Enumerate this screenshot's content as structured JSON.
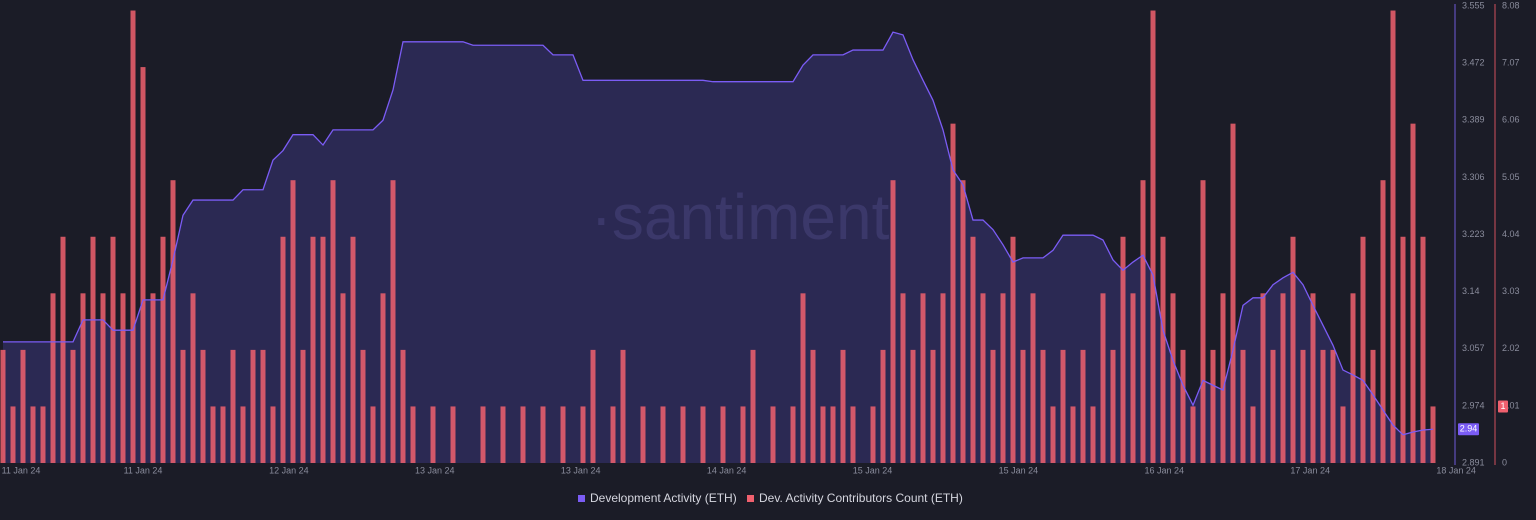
{
  "chart_data": {
    "type": "bar-line",
    "watermark": "·santiment",
    "xtick_labels": [
      "11 Jan 24",
      "11 Jan 24",
      "12 Jan 24",
      "13 Jan 24",
      "13 Jan 24",
      "14 Jan 24",
      "15 Jan 24",
      "15 Jan 24",
      "16 Jan 24",
      "17 Jan 24",
      "18 Jan 24"
    ],
    "ylim": [
      2.891,
      3.555
    ],
    "yticks": [
      2.891,
      2.974,
      3.057,
      3.14,
      3.223,
      3.306,
      3.389,
      3.472,
      3.555
    ],
    "y2lim": [
      0,
      8.08
    ],
    "y2ticks": [
      0,
      1.01,
      2.02,
      3.03,
      4.04,
      5.05,
      6.06,
      7.07,
      8.08
    ],
    "series": [
      {
        "name": "Development Activity (ETH)",
        "color": "#7b5cf5",
        "type": "area",
        "values": [
          3.067,
          3.067,
          3.067,
          3.067,
          3.067,
          3.067,
          3.067,
          3.067,
          3.099,
          3.099,
          3.099,
          3.084,
          3.084,
          3.084,
          3.128,
          3.128,
          3.128,
          3.186,
          3.251,
          3.273,
          3.273,
          3.273,
          3.273,
          3.273,
          3.288,
          3.288,
          3.288,
          3.331,
          3.345,
          3.368,
          3.368,
          3.368,
          3.353,
          3.375,
          3.375,
          3.375,
          3.375,
          3.375,
          3.389,
          3.433,
          3.503,
          3.503,
          3.503,
          3.503,
          3.503,
          3.503,
          3.503,
          3.498,
          3.498,
          3.498,
          3.498,
          3.498,
          3.498,
          3.498,
          3.498,
          3.484,
          3.484,
          3.484,
          3.447,
          3.447,
          3.447,
          3.447,
          3.447,
          3.447,
          3.447,
          3.447,
          3.447,
          3.447,
          3.447,
          3.447,
          3.447,
          3.445,
          3.445,
          3.445,
          3.445,
          3.445,
          3.445,
          3.445,
          3.445,
          3.445,
          3.469,
          3.484,
          3.484,
          3.484,
          3.484,
          3.491,
          3.491,
          3.491,
          3.491,
          3.517,
          3.513,
          3.477,
          3.447,
          3.418,
          3.375,
          3.317,
          3.295,
          3.244,
          3.244,
          3.23,
          3.208,
          3.183,
          3.189,
          3.189,
          3.189,
          3.2,
          3.222,
          3.222,
          3.222,
          3.222,
          3.215,
          3.186,
          3.171,
          3.183,
          3.193,
          3.164,
          3.084,
          3.04,
          3.004,
          2.975,
          3.011,
          3.004,
          2.997,
          3.055,
          3.12,
          3.131,
          3.131,
          3.15,
          3.16,
          3.168,
          3.15,
          3.12,
          3.091,
          3.062,
          3.026,
          3.019,
          3.011,
          2.99,
          2.968,
          2.946,
          2.932,
          2.936,
          2.939,
          2.94
        ]
      },
      {
        "name": "Dev. Activity Contributors Count (ETH)",
        "color": "#f0606e",
        "type": "bar",
        "axis": "y2",
        "values": [
          2,
          1,
          2,
          1,
          1,
          3,
          4,
          2,
          3,
          4,
          3,
          4,
          3,
          8,
          7,
          3,
          4,
          5,
          2,
          3,
          2,
          1,
          1,
          2,
          1,
          2,
          2,
          1,
          4,
          5,
          2,
          4,
          4,
          5,
          3,
          4,
          2,
          1,
          3,
          5,
          2,
          1,
          0,
          1,
          0,
          1,
          0,
          0,
          1,
          0,
          1,
          0,
          1,
          0,
          1,
          0,
          1,
          0,
          1,
          2,
          0,
          1,
          2,
          0,
          1,
          0,
          1,
          0,
          1,
          0,
          1,
          0,
          1,
          0,
          1,
          2,
          0,
          1,
          0,
          1,
          3,
          2,
          1,
          1,
          2,
          1,
          0,
          1,
          2,
          5,
          3,
          2,
          3,
          2,
          3,
          6,
          5,
          4,
          3,
          2,
          3,
          4,
          2,
          3,
          2,
          1,
          2,
          1,
          2,
          1,
          3,
          2,
          4,
          3,
          5,
          8,
          4,
          3,
          2,
          1,
          5,
          2,
          3,
          6,
          2,
          1,
          3,
          2,
          3,
          4,
          2,
          3,
          2,
          2,
          1,
          3,
          4,
          2,
          5,
          8,
          4,
          6,
          4,
          1
        ]
      }
    ]
  }
}
